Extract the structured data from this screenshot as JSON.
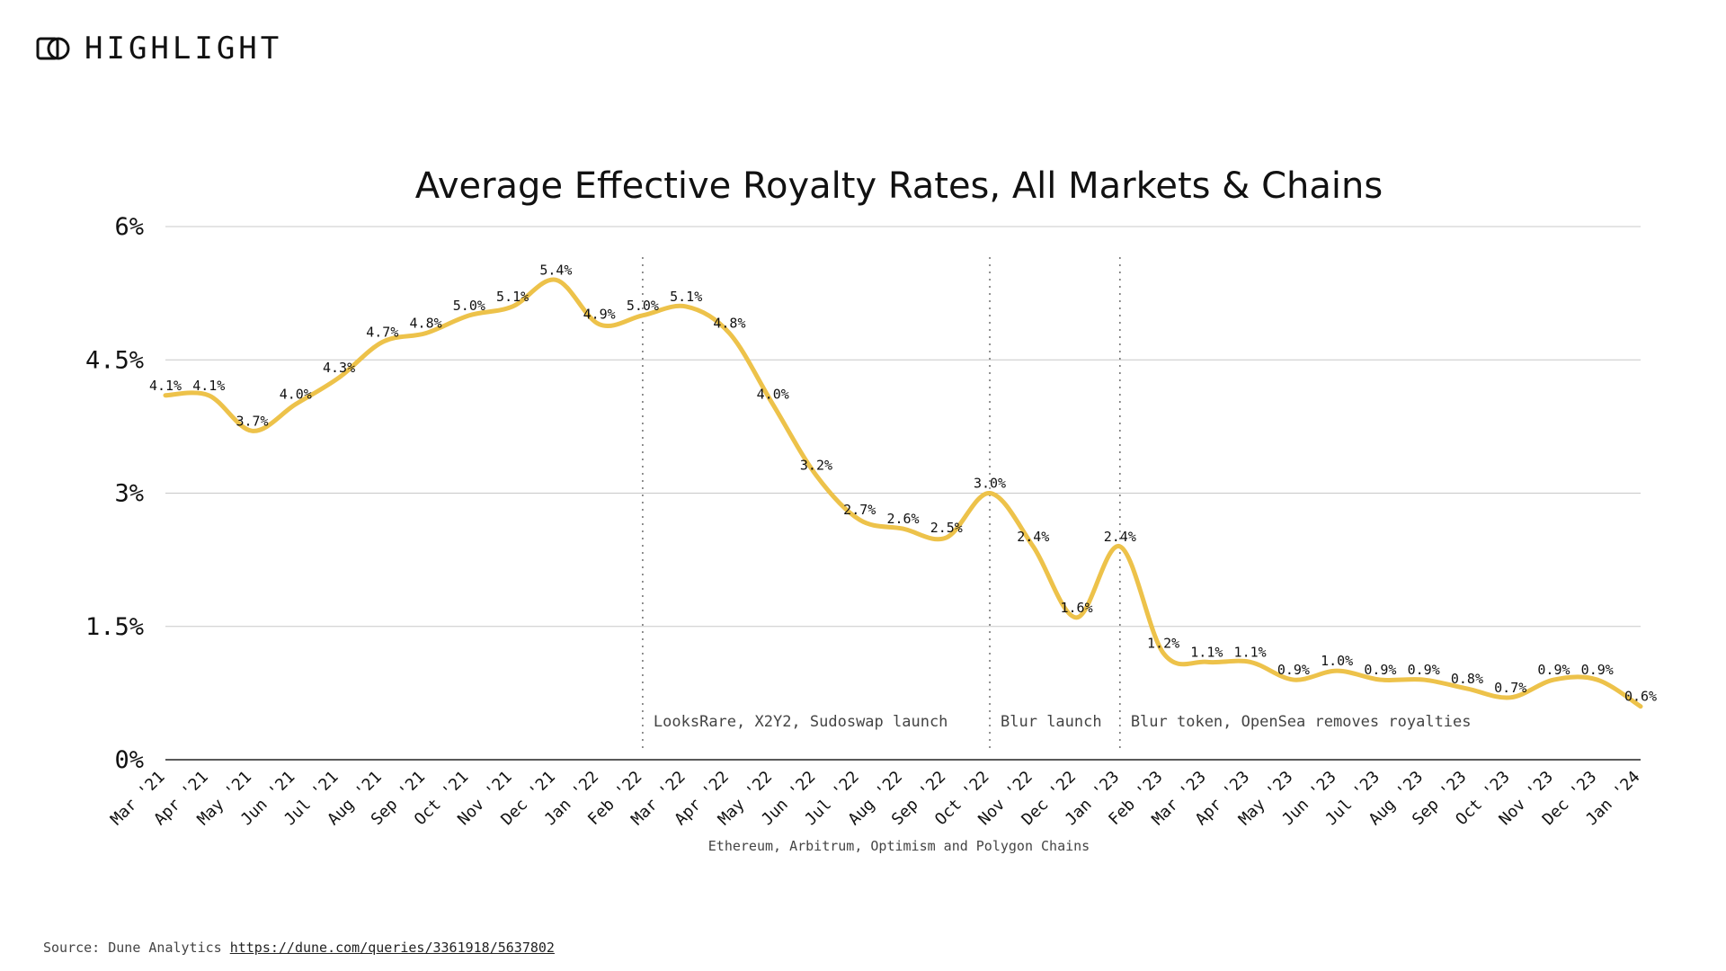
{
  "brand": {
    "logo_icon": "highlight-logo-icon",
    "name": "HIGHLIGHT"
  },
  "chart_data": {
    "type": "line",
    "title": "Average Effective Royalty Rates, All Markets & Chains",
    "xlabel": "Ethereum, Arbitrum, Optimism and Polygon Chains",
    "ylabel": "",
    "ylim": [
      0,
      6
    ],
    "yticks": [
      0,
      1.5,
      3,
      4.5,
      6
    ],
    "ytick_labels": [
      "0%",
      "1.5%",
      "3%",
      "4.5%",
      "6%"
    ],
    "grid": true,
    "line_color": "#EDC24A",
    "categories": [
      "Mar '21",
      "Apr '21",
      "May '21",
      "Jun '21",
      "Jul '21",
      "Aug '21",
      "Sep '21",
      "Oct '21",
      "Nov '21",
      "Dec '21",
      "Jan '22",
      "Feb '22",
      "Mar '22",
      "Apr '22",
      "May '22",
      "Jun '22",
      "Jul '22",
      "Aug '22",
      "Sep '22",
      "Oct '22",
      "Nov '22",
      "Dec '22",
      "Jan '23",
      "Feb '23",
      "Mar '23",
      "Apr '23",
      "May '23",
      "Jun '23",
      "Jul '23",
      "Aug '23",
      "Sep '23",
      "Oct '23",
      "Nov '23",
      "Dec '23",
      "Jan '24"
    ],
    "series": [
      {
        "name": "Average Effective Royalty Rate",
        "values": [
          4.1,
          4.1,
          3.7,
          4.0,
          4.3,
          4.7,
          4.8,
          5.0,
          5.1,
          5.4,
          4.9,
          5.0,
          5.1,
          4.8,
          4.0,
          3.2,
          2.7,
          2.6,
          2.5,
          3.0,
          2.4,
          1.6,
          2.4,
          1.2,
          1.1,
          1.1,
          0.9,
          1.0,
          0.9,
          0.9,
          0.8,
          0.7,
          0.9,
          0.9,
          0.6
        ]
      }
    ],
    "data_labels": [
      "4.1%",
      "4.1%",
      "3.7%",
      "4.0%",
      "4.3%",
      "4.7%",
      "4.8%",
      "5.0%",
      "5.1%",
      "5.4%",
      "4.9%",
      "5.0%",
      "5.1%",
      "4.8%",
      "4.0%",
      "3.2%",
      "2.7%",
      "2.6%",
      "2.5%",
      "3.0%",
      "2.4%",
      "1.6%",
      "2.4%",
      "1.2%",
      "1.1%",
      "1.1%",
      "0.9%",
      "1.0%",
      "0.9%",
      "0.9%",
      "0.8%",
      "0.7%",
      "0.9%",
      "0.9%",
      "0.6%"
    ],
    "annotations": [
      {
        "at": "Feb '22",
        "text": "LooksRare, X2Y2, Sudoswap launch"
      },
      {
        "at": "Oct '22",
        "text": "Blur launch"
      },
      {
        "at": "Jan '23",
        "text": "Blur token, OpenSea removes royalties"
      }
    ]
  },
  "source": {
    "prefix": "Source: Dune Analytics",
    "link_text": "https://dune.com/queries/3361918/5637802"
  }
}
